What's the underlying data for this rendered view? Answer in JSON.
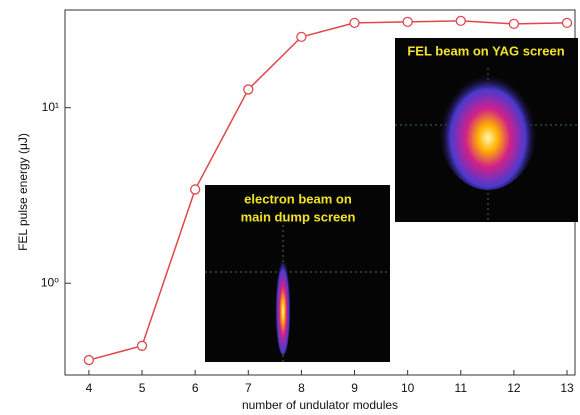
{
  "chart_data": {
    "type": "line",
    "x_label": "number of undulator modules",
    "y_label": "FEL pulse energy (μJ)",
    "x": [
      4,
      5,
      6,
      7,
      8,
      9,
      10,
      11,
      12,
      13
    ],
    "series": [
      {
        "color": "#e0474c",
        "values": [
          0.365,
          0.44,
          3.42,
          12.7,
          25.3,
          30.4,
          30.8,
          31.2,
          30.0,
          30.4
        ]
      }
    ],
    "xlim": [
      3.55,
      13.15
    ],
    "xticks": [
      4,
      5,
      6,
      7,
      8,
      9,
      10,
      11,
      12,
      13
    ],
    "ylim": [
      0.3,
      36
    ],
    "ylog": true,
    "yticks": [
      {
        "value": 1,
        "label": "10⁰"
      },
      {
        "value": 10,
        "label": "10¹"
      }
    ],
    "annotations": [
      {
        "lines": [
          "electron beam on",
          "main dump screen"
        ]
      },
      {
        "lines": [
          "FEL beam on YAG screen"
        ]
      }
    ]
  }
}
